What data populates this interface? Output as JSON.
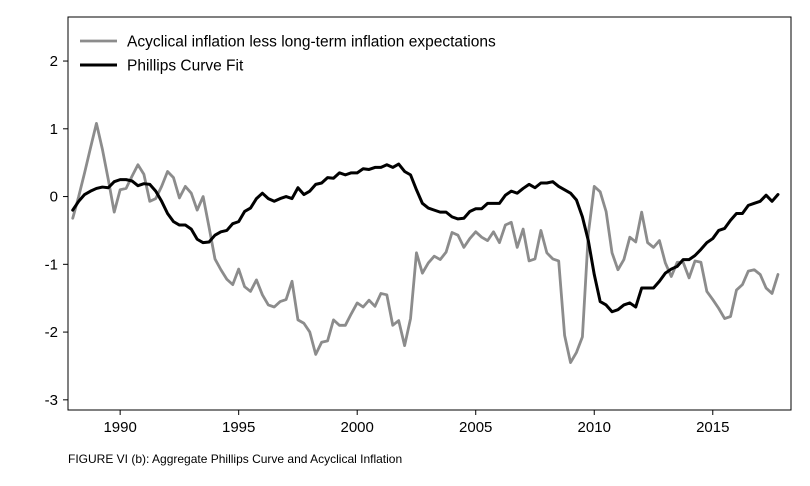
{
  "caption": "FIGURE VI (b): Aggregate Phillips Curve and Acyclical Inflation",
  "chart_data": {
    "type": "line",
    "title": "",
    "xlabel": "",
    "ylabel": "",
    "xlim": [
      1987.8,
      2018.3
    ],
    "ylim": [
      -3.15,
      2.65
    ],
    "xticks": [
      1990,
      1995,
      2000,
      2005,
      2010,
      2015
    ],
    "yticks": [
      2,
      1,
      0,
      -1,
      -2,
      -3
    ],
    "grid": false,
    "legend_position": "top-left",
    "series": [
      {
        "name": "Acyclical inflation less long-term inflation expectations",
        "color": "#8c8c8c",
        "points": [
          [
            1988.0,
            -0.32
          ],
          [
            1988.25,
            0.0
          ],
          [
            1988.5,
            0.35
          ],
          [
            1988.75,
            0.72
          ],
          [
            1989.0,
            1.08
          ],
          [
            1989.25,
            0.7
          ],
          [
            1989.5,
            0.25
          ],
          [
            1989.75,
            -0.23
          ],
          [
            1990.0,
            0.1
          ],
          [
            1990.25,
            0.12
          ],
          [
            1990.5,
            0.3
          ],
          [
            1990.75,
            0.47
          ],
          [
            1991.0,
            0.33
          ],
          [
            1991.25,
            -0.07
          ],
          [
            1991.5,
            -0.03
          ],
          [
            1991.75,
            0.15
          ],
          [
            1992.0,
            0.37
          ],
          [
            1992.25,
            0.28
          ],
          [
            1992.5,
            -0.02
          ],
          [
            1992.75,
            0.15
          ],
          [
            1993.0,
            0.05
          ],
          [
            1993.25,
            -0.2
          ],
          [
            1993.5,
            0.0
          ],
          [
            1993.75,
            -0.45
          ],
          [
            1994.0,
            -0.92
          ],
          [
            1994.25,
            -1.08
          ],
          [
            1994.5,
            -1.22
          ],
          [
            1994.75,
            -1.3
          ],
          [
            1995.0,
            -1.07
          ],
          [
            1995.25,
            -1.33
          ],
          [
            1995.5,
            -1.4
          ],
          [
            1995.75,
            -1.23
          ],
          [
            1996.0,
            -1.45
          ],
          [
            1996.25,
            -1.6
          ],
          [
            1996.5,
            -1.63
          ],
          [
            1996.75,
            -1.55
          ],
          [
            1997.0,
            -1.52
          ],
          [
            1997.25,
            -1.25
          ],
          [
            1997.5,
            -1.82
          ],
          [
            1997.75,
            -1.87
          ],
          [
            1998.0,
            -2.0
          ],
          [
            1998.25,
            -2.33
          ],
          [
            1998.5,
            -2.15
          ],
          [
            1998.75,
            -2.13
          ],
          [
            1999.0,
            -1.82
          ],
          [
            1999.25,
            -1.9
          ],
          [
            1999.5,
            -1.9
          ],
          [
            1999.75,
            -1.73
          ],
          [
            2000.0,
            -1.57
          ],
          [
            2000.25,
            -1.63
          ],
          [
            2000.5,
            -1.53
          ],
          [
            2000.75,
            -1.62
          ],
          [
            2001.0,
            -1.43
          ],
          [
            2001.25,
            -1.45
          ],
          [
            2001.5,
            -1.9
          ],
          [
            2001.75,
            -1.83
          ],
          [
            2002.0,
            -2.2
          ],
          [
            2002.25,
            -1.8
          ],
          [
            2002.5,
            -0.83
          ],
          [
            2002.75,
            -1.13
          ],
          [
            2003.0,
            -0.98
          ],
          [
            2003.25,
            -0.88
          ],
          [
            2003.5,
            -0.93
          ],
          [
            2003.75,
            -0.82
          ],
          [
            2004.0,
            -0.53
          ],
          [
            2004.25,
            -0.57
          ],
          [
            2004.5,
            -0.75
          ],
          [
            2004.75,
            -0.62
          ],
          [
            2005.0,
            -0.52
          ],
          [
            2005.25,
            -0.6
          ],
          [
            2005.5,
            -0.65
          ],
          [
            2005.75,
            -0.52
          ],
          [
            2006.0,
            -0.68
          ],
          [
            2006.25,
            -0.42
          ],
          [
            2006.5,
            -0.38
          ],
          [
            2006.75,
            -0.75
          ],
          [
            2007.0,
            -0.48
          ],
          [
            2007.25,
            -0.95
          ],
          [
            2007.5,
            -0.92
          ],
          [
            2007.75,
            -0.5
          ],
          [
            2008.0,
            -0.83
          ],
          [
            2008.25,
            -0.92
          ],
          [
            2008.5,
            -0.95
          ],
          [
            2008.75,
            -2.05
          ],
          [
            2009.0,
            -2.45
          ],
          [
            2009.25,
            -2.3
          ],
          [
            2009.5,
            -2.07
          ],
          [
            2009.75,
            -0.55
          ],
          [
            2010.0,
            0.15
          ],
          [
            2010.25,
            0.07
          ],
          [
            2010.5,
            -0.22
          ],
          [
            2010.75,
            -0.83
          ],
          [
            2011.0,
            -1.08
          ],
          [
            2011.25,
            -0.93
          ],
          [
            2011.5,
            -0.6
          ],
          [
            2011.75,
            -0.67
          ],
          [
            2012.0,
            -0.23
          ],
          [
            2012.25,
            -0.68
          ],
          [
            2012.5,
            -0.75
          ],
          [
            2012.75,
            -0.65
          ],
          [
            2013.0,
            -0.98
          ],
          [
            2013.25,
            -1.18
          ],
          [
            2013.5,
            -0.97
          ],
          [
            2013.75,
            -0.97
          ],
          [
            2014.0,
            -1.2
          ],
          [
            2014.25,
            -0.95
          ],
          [
            2014.5,
            -0.97
          ],
          [
            2014.75,
            -1.4
          ],
          [
            2015.0,
            -1.52
          ],
          [
            2015.25,
            -1.65
          ],
          [
            2015.5,
            -1.8
          ],
          [
            2015.75,
            -1.77
          ],
          [
            2016.0,
            -1.38
          ],
          [
            2016.25,
            -1.3
          ],
          [
            2016.5,
            -1.1
          ],
          [
            2016.75,
            -1.08
          ],
          [
            2017.0,
            -1.15
          ],
          [
            2017.25,
            -1.35
          ],
          [
            2017.5,
            -1.43
          ],
          [
            2017.75,
            -1.15
          ]
        ]
      },
      {
        "name": "Phillips Curve Fit",
        "color": "#000000",
        "points": [
          [
            1988.0,
            -0.2
          ],
          [
            1988.25,
            -0.07
          ],
          [
            1988.5,
            0.03
          ],
          [
            1988.75,
            0.08
          ],
          [
            1989.0,
            0.12
          ],
          [
            1989.25,
            0.14
          ],
          [
            1989.5,
            0.13
          ],
          [
            1989.75,
            0.22
          ],
          [
            1990.0,
            0.25
          ],
          [
            1990.25,
            0.25
          ],
          [
            1990.5,
            0.23
          ],
          [
            1990.75,
            0.16
          ],
          [
            1991.0,
            0.19
          ],
          [
            1991.25,
            0.18
          ],
          [
            1991.5,
            0.08
          ],
          [
            1991.75,
            -0.07
          ],
          [
            1992.0,
            -0.25
          ],
          [
            1992.25,
            -0.37
          ],
          [
            1992.5,
            -0.42
          ],
          [
            1992.75,
            -0.42
          ],
          [
            1993.0,
            -0.48
          ],
          [
            1993.25,
            -0.63
          ],
          [
            1993.5,
            -0.68
          ],
          [
            1993.75,
            -0.67
          ],
          [
            1994.0,
            -0.57
          ],
          [
            1994.25,
            -0.52
          ],
          [
            1994.5,
            -0.5
          ],
          [
            1994.75,
            -0.4
          ],
          [
            1995.0,
            -0.37
          ],
          [
            1995.25,
            -0.22
          ],
          [
            1995.5,
            -0.17
          ],
          [
            1995.75,
            -0.03
          ],
          [
            1996.0,
            0.05
          ],
          [
            1996.25,
            -0.03
          ],
          [
            1996.5,
            -0.07
          ],
          [
            1996.75,
            -0.03
          ],
          [
            1997.0,
            0.0
          ],
          [
            1997.25,
            -0.03
          ],
          [
            1997.5,
            0.13
          ],
          [
            1997.75,
            0.03
          ],
          [
            1998.0,
            0.08
          ],
          [
            1998.25,
            0.18
          ],
          [
            1998.5,
            0.2
          ],
          [
            1998.75,
            0.28
          ],
          [
            1999.0,
            0.27
          ],
          [
            1999.25,
            0.35
          ],
          [
            1999.5,
            0.32
          ],
          [
            1999.75,
            0.35
          ],
          [
            2000.0,
            0.35
          ],
          [
            2000.25,
            0.41
          ],
          [
            2000.5,
            0.4
          ],
          [
            2000.75,
            0.43
          ],
          [
            2001.0,
            0.43
          ],
          [
            2001.25,
            0.47
          ],
          [
            2001.5,
            0.43
          ],
          [
            2001.75,
            0.48
          ],
          [
            2002.0,
            0.37
          ],
          [
            2002.25,
            0.32
          ],
          [
            2002.5,
            0.1
          ],
          [
            2002.75,
            -0.1
          ],
          [
            2003.0,
            -0.17
          ],
          [
            2003.25,
            -0.2
          ],
          [
            2003.5,
            -0.23
          ],
          [
            2003.75,
            -0.23
          ],
          [
            2004.0,
            -0.3
          ],
          [
            2004.25,
            -0.33
          ],
          [
            2004.5,
            -0.32
          ],
          [
            2004.75,
            -0.22
          ],
          [
            2005.0,
            -0.18
          ],
          [
            2005.25,
            -0.18
          ],
          [
            2005.5,
            -0.1
          ],
          [
            2005.75,
            -0.1
          ],
          [
            2006.0,
            -0.1
          ],
          [
            2006.25,
            0.02
          ],
          [
            2006.5,
            0.08
          ],
          [
            2006.75,
            0.05
          ],
          [
            2007.0,
            0.12
          ],
          [
            2007.25,
            0.18
          ],
          [
            2007.5,
            0.13
          ],
          [
            2007.75,
            0.2
          ],
          [
            2008.0,
            0.2
          ],
          [
            2008.25,
            0.22
          ],
          [
            2008.5,
            0.15
          ],
          [
            2008.75,
            0.1
          ],
          [
            2009.0,
            0.05
          ],
          [
            2009.25,
            -0.05
          ],
          [
            2009.5,
            -0.3
          ],
          [
            2009.75,
            -0.65
          ],
          [
            2010.0,
            -1.15
          ],
          [
            2010.25,
            -1.55
          ],
          [
            2010.5,
            -1.6
          ],
          [
            2010.75,
            -1.7
          ],
          [
            2011.0,
            -1.67
          ],
          [
            2011.25,
            -1.6
          ],
          [
            2011.5,
            -1.57
          ],
          [
            2011.75,
            -1.63
          ],
          [
            2012.0,
            -1.35
          ],
          [
            2012.25,
            -1.35
          ],
          [
            2012.5,
            -1.35
          ],
          [
            2012.75,
            -1.25
          ],
          [
            2013.0,
            -1.13
          ],
          [
            2013.25,
            -1.07
          ],
          [
            2013.5,
            -1.03
          ],
          [
            2013.75,
            -0.93
          ],
          [
            2014.0,
            -0.93
          ],
          [
            2014.25,
            -0.87
          ],
          [
            2014.5,
            -0.78
          ],
          [
            2014.75,
            -0.68
          ],
          [
            2015.0,
            -0.62
          ],
          [
            2015.25,
            -0.5
          ],
          [
            2015.5,
            -0.47
          ],
          [
            2015.75,
            -0.35
          ],
          [
            2016.0,
            -0.25
          ],
          [
            2016.25,
            -0.25
          ],
          [
            2016.5,
            -0.13
          ],
          [
            2016.75,
            -0.1
          ],
          [
            2017.0,
            -0.07
          ],
          [
            2017.25,
            0.02
          ],
          [
            2017.5,
            -0.07
          ],
          [
            2017.75,
            0.03
          ]
        ]
      }
    ]
  }
}
